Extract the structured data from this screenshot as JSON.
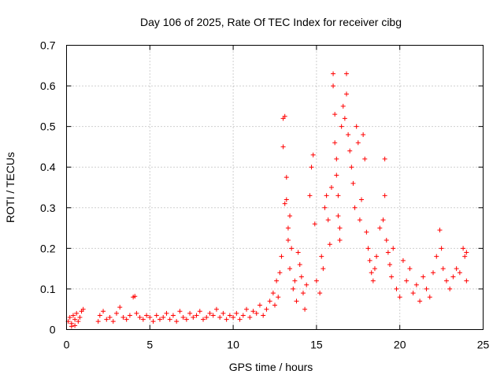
{
  "chart_data": {
    "type": "scatter",
    "title": "Day 106 of 2025, Rate Of TEC Index for receiver cibg",
    "xlabel": "GPS time / hours",
    "ylabel": "ROTI / TECUs",
    "xlim": [
      0,
      25
    ],
    "ylim": [
      0,
      0.7
    ],
    "x_ticks": [
      "0",
      "5",
      "10",
      "15",
      "20",
      "25"
    ],
    "y_ticks": [
      "0",
      "0.1",
      "0.2",
      "0.3",
      "0.4",
      "0.5",
      "0.6",
      "0.7"
    ],
    "grid": true,
    "marker": "+",
    "color": "#ff0000",
    "series": [
      {
        "name": "ROTI",
        "points": [
          [
            0.1,
            0.02
          ],
          [
            0.2,
            0.03
          ],
          [
            0.3,
            0.015
          ],
          [
            0.4,
            0.035
          ],
          [
            0.5,
            0.025
          ],
          [
            0.6,
            0.04
          ],
          [
            0.7,
            0.02
          ],
          [
            0.8,
            0.03
          ],
          [
            0.9,
            0.045
          ],
          [
            1.0,
            0.05
          ],
          [
            0.5,
            0.01
          ],
          [
            0.3,
            0.008
          ],
          [
            1.9,
            0.02
          ],
          [
            2.0,
            0.035
          ],
          [
            2.2,
            0.045
          ],
          [
            2.4,
            0.025
          ],
          [
            2.6,
            0.03
          ],
          [
            2.8,
            0.02
          ],
          [
            3.0,
            0.04
          ],
          [
            3.2,
            0.055
          ],
          [
            3.4,
            0.03
          ],
          [
            3.6,
            0.025
          ],
          [
            3.8,
            0.035
          ],
          [
            4.0,
            0.08
          ],
          [
            4.1,
            0.082
          ],
          [
            4.2,
            0.04
          ],
          [
            4.4,
            0.03
          ],
          [
            4.6,
            0.025
          ],
          [
            4.8,
            0.035
          ],
          [
            5.0,
            0.03
          ],
          [
            5.2,
            0.02
          ],
          [
            5.4,
            0.035
          ],
          [
            5.6,
            0.025
          ],
          [
            5.8,
            0.03
          ],
          [
            6.0,
            0.04
          ],
          [
            6.2,
            0.025
          ],
          [
            6.4,
            0.035
          ],
          [
            6.6,
            0.02
          ],
          [
            6.8,
            0.045
          ],
          [
            7.0,
            0.03
          ],
          [
            7.2,
            0.025
          ],
          [
            7.4,
            0.04
          ],
          [
            7.6,
            0.03
          ],
          [
            7.8,
            0.035
          ],
          [
            8.0,
            0.045
          ],
          [
            8.2,
            0.025
          ],
          [
            8.4,
            0.03
          ],
          [
            8.6,
            0.04
          ],
          [
            8.8,
            0.035
          ],
          [
            9.0,
            0.05
          ],
          [
            9.2,
            0.03
          ],
          [
            9.4,
            0.04
          ],
          [
            9.6,
            0.025
          ],
          [
            9.8,
            0.035
          ],
          [
            10.0,
            0.03
          ],
          [
            10.2,
            0.04
          ],
          [
            10.4,
            0.025
          ],
          [
            10.6,
            0.035
          ],
          [
            10.8,
            0.05
          ],
          [
            11.0,
            0.03
          ],
          [
            11.2,
            0.045
          ],
          [
            11.4,
            0.04
          ],
          [
            11.6,
            0.06
          ],
          [
            11.8,
            0.035
          ],
          [
            12.0,
            0.05
          ],
          [
            12.2,
            0.07
          ],
          [
            12.4,
            0.09
          ],
          [
            12.5,
            0.06
          ],
          [
            12.6,
            0.12
          ],
          [
            12.7,
            0.08
          ],
          [
            12.8,
            0.14
          ],
          [
            12.9,
            0.18
          ],
          [
            13.0,
            0.45
          ],
          [
            13.0,
            0.52
          ],
          [
            13.1,
            0.525
          ],
          [
            13.1,
            0.31
          ],
          [
            13.2,
            0.375
          ],
          [
            13.2,
            0.32
          ],
          [
            13.3,
            0.22
          ],
          [
            13.3,
            0.25
          ],
          [
            13.4,
            0.28
          ],
          [
            13.4,
            0.15
          ],
          [
            13.5,
            0.2
          ],
          [
            13.6,
            0.1
          ],
          [
            13.7,
            0.12
          ],
          [
            13.8,
            0.07
          ],
          [
            13.9,
            0.19
          ],
          [
            14.0,
            0.16
          ],
          [
            14.1,
            0.13
          ],
          [
            14.2,
            0.09
          ],
          [
            14.3,
            0.05
          ],
          [
            14.4,
            0.11
          ],
          [
            14.6,
            0.33
          ],
          [
            14.7,
            0.4
          ],
          [
            14.8,
            0.43
          ],
          [
            14.9,
            0.26
          ],
          [
            15.0,
            0.12
          ],
          [
            15.2,
            0.09
          ],
          [
            15.3,
            0.18
          ],
          [
            15.4,
            0.15
          ],
          [
            15.5,
            0.3
          ],
          [
            15.6,
            0.33
          ],
          [
            15.7,
            0.27
          ],
          [
            15.8,
            0.21
          ],
          [
            15.9,
            0.35
          ],
          [
            16.0,
            0.63
          ],
          [
            16.0,
            0.6
          ],
          [
            16.1,
            0.53
          ],
          [
            16.1,
            0.46
          ],
          [
            16.2,
            0.42
          ],
          [
            16.2,
            0.38
          ],
          [
            16.3,
            0.33
          ],
          [
            16.3,
            0.28
          ],
          [
            16.4,
            0.25
          ],
          [
            16.4,
            0.22
          ],
          [
            16.5,
            0.5
          ],
          [
            16.6,
            0.55
          ],
          [
            16.7,
            0.52
          ],
          [
            16.8,
            0.63
          ],
          [
            16.8,
            0.58
          ],
          [
            16.9,
            0.48
          ],
          [
            17.0,
            0.44
          ],
          [
            17.1,
            0.4
          ],
          [
            17.2,
            0.36
          ],
          [
            17.3,
            0.3
          ],
          [
            17.4,
            0.5
          ],
          [
            17.5,
            0.46
          ],
          [
            17.6,
            0.27
          ],
          [
            17.7,
            0.32
          ],
          [
            17.8,
            0.48
          ],
          [
            17.9,
            0.42
          ],
          [
            18.0,
            0.24
          ],
          [
            18.1,
            0.2
          ],
          [
            18.2,
            0.17
          ],
          [
            18.3,
            0.14
          ],
          [
            18.4,
            0.12
          ],
          [
            18.5,
            0.15
          ],
          [
            18.6,
            0.18
          ],
          [
            18.8,
            0.25
          ],
          [
            19.0,
            0.27
          ],
          [
            19.1,
            0.42
          ],
          [
            19.1,
            0.33
          ],
          [
            19.2,
            0.22
          ],
          [
            19.3,
            0.19
          ],
          [
            19.4,
            0.16
          ],
          [
            19.5,
            0.13
          ],
          [
            19.6,
            0.2
          ],
          [
            19.8,
            0.1
          ],
          [
            20.0,
            0.08
          ],
          [
            20.2,
            0.17
          ],
          [
            20.4,
            0.12
          ],
          [
            20.6,
            0.15
          ],
          [
            20.8,
            0.09
          ],
          [
            21.0,
            0.11
          ],
          [
            21.2,
            0.07
          ],
          [
            21.4,
            0.13
          ],
          [
            21.6,
            0.1
          ],
          [
            21.8,
            0.08
          ],
          [
            22.0,
            0.14
          ],
          [
            22.2,
            0.18
          ],
          [
            22.4,
            0.245
          ],
          [
            22.5,
            0.2
          ],
          [
            22.6,
            0.15
          ],
          [
            22.8,
            0.12
          ],
          [
            23.0,
            0.1
          ],
          [
            23.2,
            0.13
          ],
          [
            23.4,
            0.15
          ],
          [
            23.6,
            0.14
          ],
          [
            23.8,
            0.2
          ],
          [
            23.9,
            0.18
          ],
          [
            24.0,
            0.19
          ],
          [
            24.0,
            0.12
          ]
        ]
      }
    ]
  }
}
